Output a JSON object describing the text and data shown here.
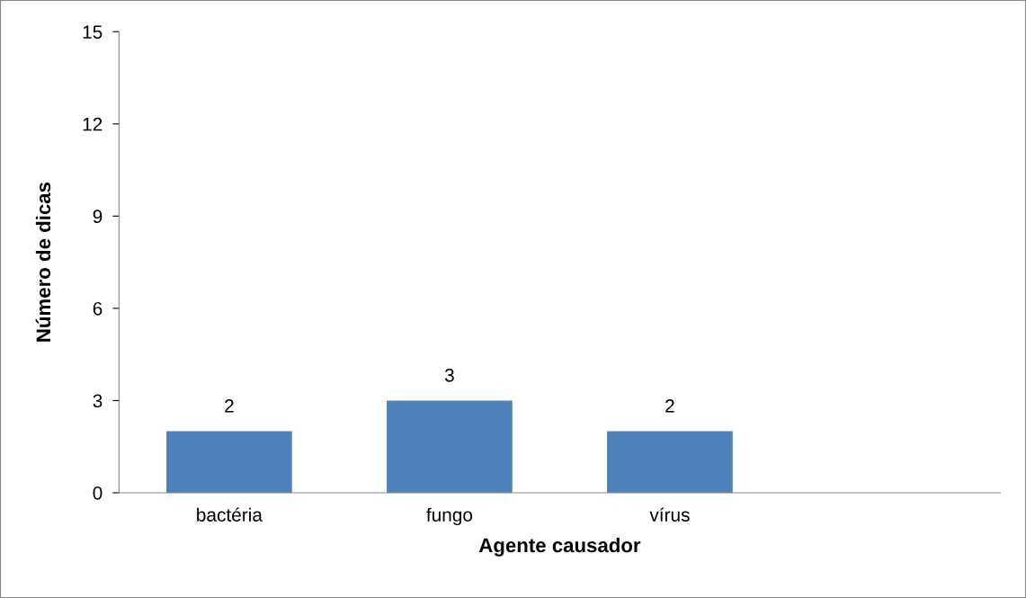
{
  "chart_data": {
    "type": "bar",
    "xlabel": "Agente causador",
    "ylabel": "Número de dicas",
    "categories": [
      "bactéria",
      "fungo",
      "vírus",
      null
    ],
    "values": [
      2,
      3,
      2,
      null
    ],
    "color": "#4f81bd",
    "ylim": [
      0,
      15
    ],
    "yticks": [
      0,
      3,
      6,
      9,
      12,
      15
    ],
    "grid": false,
    "data_labels": true
  }
}
